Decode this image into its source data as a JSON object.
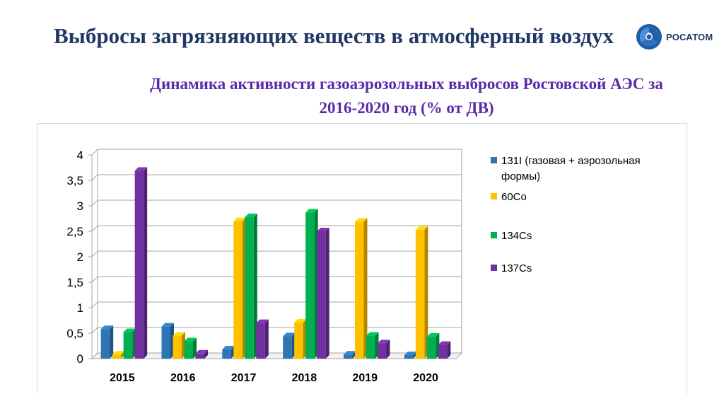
{
  "slide": {
    "title": "Выбросы загрязняющих веществ в атмосферный воздух",
    "logo_text": "РОСАТОМ",
    "logo_icon": "rosatom-atom-icon"
  },
  "chart_data": {
    "type": "bar",
    "title": "Динамика активности газоаэрозольных выбросов Ростовской АЭС за 2016-2020 год (% от ДВ)",
    "categories": [
      "2015",
      "2016",
      "2017",
      "2018",
      "2019",
      "2020"
    ],
    "series": [
      {
        "name": "131I (газовая + аэрозольная формы)",
        "color": "#2e75b6",
        "values": [
          0.58,
          0.63,
          0.18,
          0.44,
          0.08,
          0.07
        ]
      },
      {
        "name": "60Co",
        "color": "#ffc000",
        "values": [
          0.08,
          0.45,
          2.7,
          0.71,
          2.69,
          2.53
        ]
      },
      {
        "name": "134Cs",
        "color": "#00b050",
        "values": [
          0.52,
          0.34,
          2.78,
          2.87,
          0.45,
          0.43
        ]
      },
      {
        "name": "137Cs",
        "color": "#7030a0",
        "values": [
          3.69,
          0.1,
          0.7,
          2.5,
          0.3,
          0.27
        ]
      }
    ],
    "yticks": [
      "0",
      "0,5",
      "1",
      "1,5",
      "2",
      "2,5",
      "3",
      "3,5",
      "4"
    ],
    "ylim": [
      0,
      4
    ],
    "xlabel": "",
    "ylabel": "",
    "grid": true,
    "legend": "right"
  }
}
